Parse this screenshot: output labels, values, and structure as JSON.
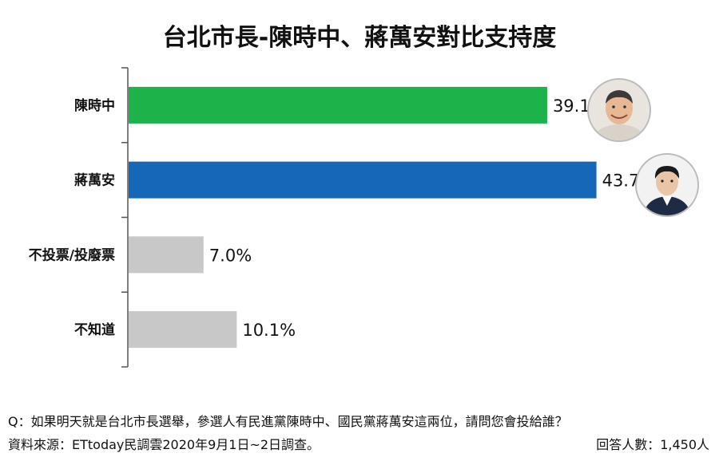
{
  "chart_data": {
    "type": "bar",
    "orientation": "horizontal",
    "title": "台北市長-陳時中、蔣萬安對比支持度",
    "categories": [
      "陳時中",
      "蔣萬安",
      "不投票/投廢票",
      "不知道"
    ],
    "values": [
      39.1,
      43.7,
      7.0,
      10.1
    ],
    "value_labels": [
      "39.1%",
      "43.7%",
      "7.0%",
      "10.1%"
    ],
    "colors": [
      "#1db34a",
      "#1767b8",
      "#c8c8c8",
      "#c8c8c8"
    ],
    "xlim": [
      0,
      50
    ],
    "grid": false,
    "legend": "none"
  },
  "question": "Q：如果明天就是台北市長選舉，參選人有民進黨陳時中、國民黨蔣萬安這兩位，請問您會投給誰？",
  "source": "資料來源：ETtoday民調雲2020年9月1日~2日調查。",
  "respondents": "回答人數：1,450人",
  "avatars": [
    "person-photo-chen",
    "person-photo-chiang"
  ]
}
